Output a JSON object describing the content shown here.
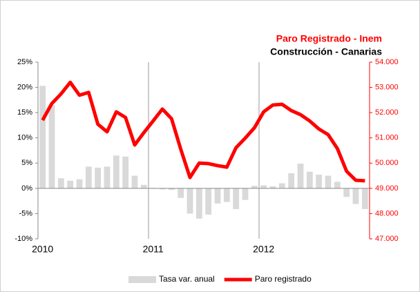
{
  "chart_data": {
    "type": "bar_line",
    "title": "Paro Registrado - Inem",
    "subtitle": "Construcción - Canarias",
    "categories": [
      "2010",
      null,
      null,
      null,
      null,
      null,
      null,
      null,
      null,
      null,
      null,
      null,
      "2011",
      null,
      null,
      null,
      null,
      null,
      null,
      null,
      null,
      null,
      null,
      null,
      "2012",
      null,
      null,
      null,
      null,
      null,
      null,
      null,
      null,
      null,
      null,
      null
    ],
    "series": [
      {
        "name": "Tasa var. anual",
        "type": "bar",
        "color": "#d9d9d9",
        "values": [
          20.3,
          16.5,
          2.0,
          1.5,
          1.8,
          4.3,
          4.1,
          4.3,
          6.5,
          6.3,
          2.5,
          0.7,
          0.1,
          -0.2,
          -0.3,
          -1.9,
          -5.0,
          -6.0,
          -5.2,
          -3.0,
          -2.7,
          -4.1,
          -2.3,
          0.5,
          0.6,
          0.4,
          1.0,
          3.0,
          4.9,
          3.3,
          2.7,
          2.5,
          1.3,
          -1.7,
          -3.1,
          -4.1
        ]
      },
      {
        "name": "Paro registrado",
        "type": "line",
        "axis": "y2",
        "color": "#ff0000",
        "values": [
          51700,
          52360,
          52740,
          53200,
          52690,
          52800,
          51540,
          51240,
          52030,
          51810,
          50720,
          51210,
          51670,
          52140,
          51760,
          50550,
          49430,
          50000,
          49980,
          49900,
          49840,
          50610,
          50990,
          51400,
          52030,
          52300,
          52330,
          52080,
          51920,
          51670,
          51350,
          51130,
          50580,
          49680,
          49320,
          49300
        ]
      }
    ],
    "ylim": [
      -10,
      25
    ],
    "yticks": [
      {
        "value": -10,
        "label": "-10%"
      },
      {
        "value": -5,
        "label": "-5%"
      },
      {
        "value": 0,
        "label": "0%"
      },
      {
        "value": 5,
        "label": "5%"
      },
      {
        "value": 10,
        "label": "10%"
      },
      {
        "value": 15,
        "label": "15%"
      },
      {
        "value": 20,
        "label": "20%"
      },
      {
        "value": 25,
        "label": "25%"
      }
    ],
    "y2lim": [
      47000,
      54000
    ],
    "y2ticks": [
      {
        "value": 47000,
        "label": "47.000"
      },
      {
        "value": 48000,
        "label": "48.000"
      },
      {
        "value": 49000,
        "label": "49.000"
      },
      {
        "value": 50000,
        "label": "50.000"
      },
      {
        "value": 51000,
        "label": "51.000"
      },
      {
        "value": 52000,
        "label": "52.000"
      },
      {
        "value": 53000,
        "label": "53.000"
      },
      {
        "value": 54000,
        "label": "54.000"
      }
    ],
    "legend": "bottom"
  }
}
